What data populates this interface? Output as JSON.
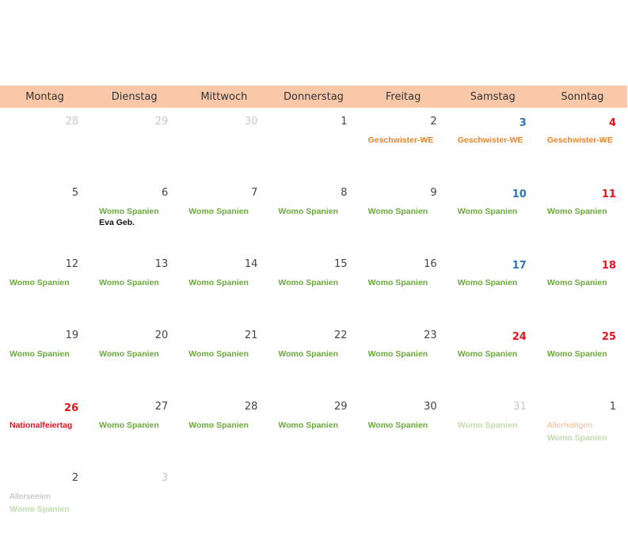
{
  "header": {
    "days": [
      "Montag",
      "Dienstag",
      "Mittwoch",
      "Donnerstag",
      "Freitag",
      "Samstag",
      "Sonntag"
    ]
  },
  "weeks": [
    [
      {
        "day": "28",
        "cls": "faded",
        "events": []
      },
      {
        "day": "29",
        "cls": "faded",
        "events": []
      },
      {
        "day": "30",
        "cls": "faded",
        "events": []
      },
      {
        "day": "1",
        "cls": "",
        "events": []
      },
      {
        "day": "2",
        "cls": "",
        "events": [
          {
            "text": "Geschwister-WE",
            "color": "orange"
          }
        ]
      },
      {
        "day": "3",
        "cls": "sat",
        "events": [
          {
            "text": "Geschwister-WE",
            "color": "orange"
          }
        ]
      },
      {
        "day": "4",
        "cls": "sun",
        "events": [
          {
            "text": "Geschwister-WE",
            "color": "orange"
          }
        ]
      }
    ],
    [
      {
        "day": "5",
        "cls": "",
        "events": []
      },
      {
        "day": "6",
        "cls": "",
        "events": [
          {
            "text": "Womo Spanien",
            "color": "green"
          },
          {
            "text": "Eva Geb.",
            "color": "black"
          }
        ]
      },
      {
        "day": "7",
        "cls": "",
        "events": [
          {
            "text": "Womo Spanien",
            "color": "green"
          }
        ]
      },
      {
        "day": "8",
        "cls": "",
        "events": [
          {
            "text": "Womo Spanien",
            "color": "green"
          }
        ]
      },
      {
        "day": "9",
        "cls": "",
        "events": [
          {
            "text": "Womo Spanien",
            "color": "green"
          }
        ]
      },
      {
        "day": "10",
        "cls": "sat",
        "events": [
          {
            "text": "Womo Spanien",
            "color": "green"
          }
        ]
      },
      {
        "day": "11",
        "cls": "sun",
        "events": [
          {
            "text": "Womo Spanien",
            "color": "green"
          }
        ]
      }
    ],
    [
      {
        "day": "12",
        "cls": "",
        "events": [
          {
            "text": "Womo Spanien",
            "color": "green"
          }
        ]
      },
      {
        "day": "13",
        "cls": "",
        "events": [
          {
            "text": "Womo Spanien",
            "color": "green"
          }
        ]
      },
      {
        "day": "14",
        "cls": "",
        "events": [
          {
            "text": "Womo Spanien",
            "color": "green"
          }
        ]
      },
      {
        "day": "15",
        "cls": "",
        "events": [
          {
            "text": "Womo Spanien",
            "color": "green"
          }
        ]
      },
      {
        "day": "16",
        "cls": "",
        "events": [
          {
            "text": "Womo Spanien",
            "color": "green"
          }
        ]
      },
      {
        "day": "17",
        "cls": "sat",
        "events": [
          {
            "text": "Womo Spanien",
            "color": "green"
          }
        ]
      },
      {
        "day": "18",
        "cls": "sun",
        "events": [
          {
            "text": "Womo Spanien",
            "color": "green"
          }
        ]
      }
    ],
    [
      {
        "day": "19",
        "cls": "",
        "events": [
          {
            "text": "Womo Spanien",
            "color": "green"
          }
        ]
      },
      {
        "day": "20",
        "cls": "",
        "events": [
          {
            "text": "Womo Spanien",
            "color": "green"
          }
        ]
      },
      {
        "day": "21",
        "cls": "",
        "events": [
          {
            "text": "Womo Spanien",
            "color": "green"
          }
        ]
      },
      {
        "day": "22",
        "cls": "",
        "events": [
          {
            "text": "Womo Spanien",
            "color": "green"
          }
        ]
      },
      {
        "day": "23",
        "cls": "",
        "events": [
          {
            "text": "Womo Spanien",
            "color": "green"
          }
        ]
      },
      {
        "day": "24",
        "cls": "sun",
        "events": [
          {
            "text": "Womo Spanien",
            "color": "green"
          }
        ]
      },
      {
        "day": "25",
        "cls": "sun",
        "events": [
          {
            "text": "Womo Spanien",
            "color": "green"
          }
        ]
      }
    ],
    [
      {
        "day": "26",
        "cls": "sun",
        "events": [
          {
            "text": "Nationalfeiertag",
            "color": "red"
          }
        ]
      },
      {
        "day": "27",
        "cls": "",
        "events": [
          {
            "text": "Womo Spanien",
            "color": "green"
          }
        ]
      },
      {
        "day": "28",
        "cls": "",
        "events": [
          {
            "text": "Womo Spanien",
            "color": "green"
          }
        ]
      },
      {
        "day": "29",
        "cls": "",
        "events": [
          {
            "text": "Womo Spanien",
            "color": "green"
          }
        ]
      },
      {
        "day": "30",
        "cls": "",
        "events": [
          {
            "text": "Womo Spanien",
            "color": "green"
          }
        ]
      },
      {
        "day": "31",
        "cls": "faded",
        "events": [
          {
            "text": "Womo Spanien",
            "color": "lgreen"
          }
        ]
      },
      {
        "day": "1",
        "cls": "",
        "events": [
          {
            "text": "Allerheiligen",
            "color": "lorange"
          },
          {
            "text": "Womo Spanien",
            "color": "lgreen"
          }
        ]
      }
    ],
    [
      {
        "day": "2",
        "cls": "",
        "events": [
          {
            "text": "Allerseelen",
            "color": "lgray"
          },
          {
            "text": "Womo Spanien",
            "color": "lgreen"
          }
        ]
      },
      {
        "day": "3",
        "cls": "faded",
        "events": []
      },
      null,
      null,
      null,
      null,
      null
    ]
  ]
}
